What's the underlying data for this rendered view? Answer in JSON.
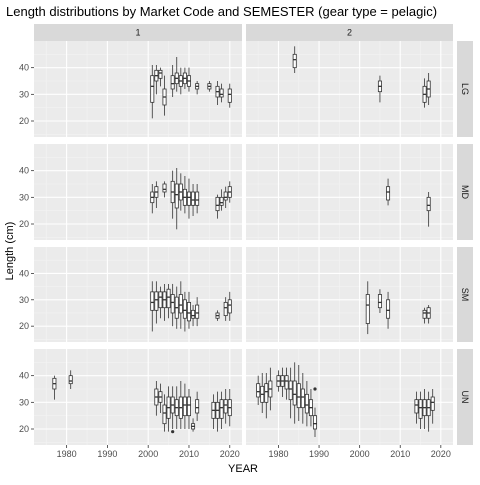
{
  "chart_data": {
    "type": "boxplot",
    "title": "Length distributions by Market Code and SEMESTER (gear type = pelagic)",
    "xlabel": "YEAR",
    "ylabel": "Length (cm)",
    "xlim": [
      1972,
      2023
    ],
    "ylim": [
      14,
      50
    ],
    "xticks": [
      1980,
      1990,
      2000,
      2010,
      2020
    ],
    "yticks": [
      20,
      30,
      40
    ],
    "column_facet_labels": [
      "1",
      "2"
    ],
    "row_facet_labels": [
      "LG",
      "MD",
      "SM",
      "UN"
    ],
    "grid": true,
    "panels": [
      {
        "col": "1",
        "row": "LG",
        "boxes": [
          {
            "year": 2001,
            "min": 21,
            "q1": 27,
            "median": 33,
            "q3": 37,
            "max": 41
          },
          {
            "year": 2002,
            "min": 30,
            "q1": 35,
            "median": 37,
            "q3": 39,
            "max": 41
          },
          {
            "year": 2003,
            "min": 33,
            "q1": 36,
            "median": 38,
            "q3": 39,
            "max": 40
          },
          {
            "year": 2004,
            "min": 22,
            "q1": 26,
            "median": 29,
            "q3": 32,
            "max": 37
          },
          {
            "year": 2006,
            "min": 29,
            "q1": 32,
            "median": 34,
            "q3": 37,
            "max": 41
          },
          {
            "year": 2007,
            "min": 31,
            "q1": 34,
            "median": 36,
            "q3": 38,
            "max": 44
          },
          {
            "year": 2008,
            "min": 30,
            "q1": 33,
            "median": 35,
            "q3": 37,
            "max": 40
          },
          {
            "year": 2009,
            "min": 32,
            "q1": 34,
            "median": 36,
            "q3": 38,
            "max": 40
          },
          {
            "year": 2010,
            "min": 31,
            "q1": 33,
            "median": 35,
            "q3": 37,
            "max": 40
          },
          {
            "year": 2012,
            "min": 30,
            "q1": 32,
            "median": 33,
            "q3": 34,
            "max": 35
          },
          {
            "year": 2015,
            "min": 31,
            "q1": 32,
            "median": 33,
            "q3": 34,
            "max": 35
          },
          {
            "year": 2017,
            "min": 26,
            "q1": 29,
            "median": 31,
            "q3": 33,
            "max": 35
          },
          {
            "year": 2018,
            "min": 27,
            "q1": 29,
            "median": 30,
            "q3": 32,
            "max": 34
          },
          {
            "year": 2020,
            "min": 25,
            "q1": 27,
            "median": 30,
            "q3": 32,
            "max": 34
          }
        ]
      },
      {
        "col": "2",
        "row": "LG",
        "boxes": [
          {
            "year": 1984,
            "min": 38,
            "q1": 40,
            "median": 43,
            "q3": 45,
            "max": 48
          },
          {
            "year": 2005,
            "min": 27,
            "q1": 31,
            "median": 33,
            "q3": 35,
            "max": 37
          },
          {
            "year": 2016,
            "min": 25,
            "q1": 27,
            "median": 30,
            "q3": 33,
            "max": 36
          },
          {
            "year": 2017,
            "min": 26,
            "q1": 29,
            "median": 32,
            "q3": 35,
            "max": 38
          }
        ]
      },
      {
        "col": "1",
        "row": "MD",
        "boxes": [
          {
            "year": 2001,
            "min": 24,
            "q1": 28,
            "median": 30,
            "q3": 32,
            "max": 35
          },
          {
            "year": 2002,
            "min": 26,
            "q1": 30,
            "median": 32,
            "q3": 34,
            "max": 36
          },
          {
            "year": 2004,
            "min": 30,
            "q1": 32,
            "median": 33,
            "q3": 35,
            "max": 36
          },
          {
            "year": 2006,
            "min": 22,
            "q1": 28,
            "median": 32,
            "q3": 36,
            "max": 40
          },
          {
            "year": 2007,
            "min": 18,
            "q1": 26,
            "median": 31,
            "q3": 35,
            "max": 41
          },
          {
            "year": 2008,
            "min": 25,
            "q1": 29,
            "median": 32,
            "q3": 35,
            "max": 39
          },
          {
            "year": 2009,
            "min": 24,
            "q1": 27,
            "median": 30,
            "q3": 33,
            "max": 38
          },
          {
            "year": 2010,
            "min": 22,
            "q1": 27,
            "median": 30,
            "q3": 32,
            "max": 37
          },
          {
            "year": 2011,
            "min": 23,
            "q1": 27,
            "median": 29,
            "q3": 32,
            "max": 35
          },
          {
            "year": 2012,
            "min": 24,
            "q1": 27,
            "median": 29,
            "q3": 32,
            "max": 35
          },
          {
            "year": 2017,
            "min": 22,
            "q1": 25,
            "median": 27,
            "q3": 30,
            "max": 31
          },
          {
            "year": 2018,
            "min": 25,
            "q1": 27,
            "median": 28,
            "q3": 30,
            "max": 33
          },
          {
            "year": 2019,
            "min": 26,
            "q1": 29,
            "median": 30,
            "q3": 32,
            "max": 34
          },
          {
            "year": 2020,
            "min": 28,
            "q1": 30,
            "median": 32,
            "q3": 34,
            "max": 36
          }
        ]
      },
      {
        "col": "2",
        "row": "MD",
        "boxes": [
          {
            "year": 2007,
            "min": 27,
            "q1": 29,
            "median": 32,
            "q3": 34,
            "max": 37
          },
          {
            "year": 2017,
            "min": 19,
            "q1": 25,
            "median": 27,
            "q3": 30,
            "max": 32
          }
        ]
      },
      {
        "col": "1",
        "row": "SM",
        "boxes": [
          {
            "year": 2001,
            "min": 18,
            "q1": 26,
            "median": 29,
            "q3": 33,
            "max": 37
          },
          {
            "year": 2002,
            "min": 21,
            "q1": 26,
            "median": 30,
            "q3": 33,
            "max": 37
          },
          {
            "year": 2003,
            "min": 23,
            "q1": 27,
            "median": 31,
            "q3": 33,
            "max": 35
          },
          {
            "year": 2004,
            "min": 22,
            "q1": 27,
            "median": 30,
            "q3": 33,
            "max": 36
          },
          {
            "year": 2005,
            "min": 23,
            "q1": 27,
            "median": 31,
            "q3": 34,
            "max": 36
          },
          {
            "year": 2006,
            "min": 20,
            "q1": 25,
            "median": 29,
            "q3": 32,
            "max": 36
          },
          {
            "year": 2007,
            "min": 19,
            "q1": 23,
            "median": 27,
            "q3": 31,
            "max": 35
          },
          {
            "year": 2008,
            "min": 19,
            "q1": 25,
            "median": 28,
            "q3": 32,
            "max": 37
          },
          {
            "year": 2009,
            "min": 18,
            "q1": 23,
            "median": 26,
            "q3": 30,
            "max": 33
          },
          {
            "year": 2010,
            "min": 19,
            "q1": 22,
            "median": 25,
            "q3": 29,
            "max": 33
          },
          {
            "year": 2011,
            "min": 20,
            "q1": 23,
            "median": 24,
            "q3": 26,
            "max": 28
          },
          {
            "year": 2012,
            "min": 20,
            "q1": 23,
            "median": 25,
            "q3": 28,
            "max": 31
          },
          {
            "year": 2017,
            "min": 22,
            "q1": 23,
            "median": 24,
            "q3": 25,
            "max": 26
          },
          {
            "year": 2019,
            "min": 22,
            "q1": 24,
            "median": 27,
            "q3": 29,
            "max": 31
          },
          {
            "year": 2020,
            "min": 22,
            "q1": 25,
            "median": 28,
            "q3": 30,
            "max": 33
          }
        ]
      },
      {
        "col": "2",
        "row": "SM",
        "boxes": [
          {
            "year": 2002,
            "min": 17,
            "q1": 21,
            "median": 28,
            "q3": 32,
            "max": 37
          },
          {
            "year": 2005,
            "min": 25,
            "q1": 27,
            "median": 29,
            "q3": 32,
            "max": 34
          },
          {
            "year": 2007,
            "min": 19,
            "q1": 23,
            "median": 26,
            "q3": 30,
            "max": 33
          },
          {
            "year": 2016,
            "min": 21,
            "q1": 23,
            "median": 25,
            "q3": 26,
            "max": 27
          },
          {
            "year": 2017,
            "min": 21,
            "q1": 23,
            "median": 25,
            "q3": 27,
            "max": 28
          }
        ]
      },
      {
        "col": "1",
        "row": "UN",
        "boxes": [
          {
            "year": 1977,
            "min": 31,
            "q1": 35,
            "median": 37,
            "q3": 39,
            "max": 40
          },
          {
            "year": 1981,
            "min": 35,
            "q1": 37,
            "median": 38,
            "q3": 40,
            "max": 42
          },
          {
            "year": 2002,
            "min": 25,
            "q1": 29,
            "median": 32,
            "q3": 35,
            "max": 38
          },
          {
            "year": 2003,
            "min": 26,
            "q1": 30,
            "median": 32,
            "q3": 34,
            "max": 37
          },
          {
            "year": 2004,
            "min": 19,
            "q1": 22,
            "median": 26,
            "q3": 29,
            "max": 33
          },
          {
            "year": 2005,
            "min": 19,
            "q1": 24,
            "median": 28,
            "q3": 32,
            "max": 36
          },
          {
            "year": 2006,
            "min": 20,
            "q1": 26,
            "median": 29,
            "q3": 32,
            "max": 36,
            "outliers": [
              19
            ]
          },
          {
            "year": 2007,
            "min": 20,
            "q1": 25,
            "median": 28,
            "q3": 31,
            "max": 36
          },
          {
            "year": 2008,
            "min": 20,
            "q1": 24,
            "median": 28,
            "q3": 32,
            "max": 38
          },
          {
            "year": 2009,
            "min": 20,
            "q1": 25,
            "median": 29,
            "q3": 32,
            "max": 37
          },
          {
            "year": 2010,
            "min": 20,
            "q1": 25,
            "median": 29,
            "q3": 32,
            "max": 35
          },
          {
            "year": 2011,
            "min": 19,
            "q1": 20,
            "median": 21,
            "q3": 22,
            "max": 24
          },
          {
            "year": 2012,
            "min": 23,
            "q1": 26,
            "median": 28,
            "q3": 31,
            "max": 34
          },
          {
            "year": 2016,
            "min": 20,
            "q1": 24,
            "median": 27,
            "q3": 30,
            "max": 33
          },
          {
            "year": 2017,
            "min": 19,
            "q1": 24,
            "median": 27,
            "q3": 30,
            "max": 34
          },
          {
            "year": 2018,
            "min": 20,
            "q1": 24,
            "median": 28,
            "q3": 31,
            "max": 34
          },
          {
            "year": 2019,
            "min": 22,
            "q1": 26,
            "median": 29,
            "q3": 31,
            "max": 35
          },
          {
            "year": 2020,
            "min": 21,
            "q1": 25,
            "median": 28,
            "q3": 31,
            "max": 35
          }
        ]
      },
      {
        "col": "2",
        "row": "UN",
        "boxes": [
          {
            "year": 1975,
            "min": 29,
            "q1": 32,
            "median": 34,
            "q3": 37,
            "max": 40
          },
          {
            "year": 1976,
            "min": 26,
            "q1": 30,
            "median": 33,
            "q3": 36,
            "max": 41
          },
          {
            "year": 1977,
            "min": 24,
            "q1": 30,
            "median": 34,
            "q3": 37,
            "max": 41
          },
          {
            "year": 1978,
            "min": 27,
            "q1": 32,
            "median": 35,
            "q3": 38,
            "max": 43
          },
          {
            "year": 1980,
            "min": 34,
            "q1": 36,
            "median": 38,
            "q3": 40,
            "max": 42
          },
          {
            "year": 1981,
            "min": 32,
            "q1": 36,
            "median": 38,
            "q3": 40,
            "max": 43
          },
          {
            "year": 1982,
            "min": 31,
            "q1": 35,
            "median": 38,
            "q3": 40,
            "max": 43
          },
          {
            "year": 1983,
            "min": 24,
            "q1": 31,
            "median": 35,
            "q3": 38,
            "max": 43
          },
          {
            "year": 1984,
            "min": 22,
            "q1": 29,
            "median": 33,
            "q3": 38,
            "max": 45
          },
          {
            "year": 1985,
            "min": 23,
            "q1": 28,
            "median": 32,
            "q3": 37,
            "max": 44
          },
          {
            "year": 1986,
            "min": 22,
            "q1": 28,
            "median": 32,
            "q3": 35,
            "max": 41
          },
          {
            "year": 1987,
            "min": 21,
            "q1": 26,
            "median": 29,
            "q3": 33,
            "max": 38
          },
          {
            "year": 1988,
            "min": 21,
            "q1": 25,
            "median": 28,
            "q3": 31,
            "max": 35
          },
          {
            "year": 1989,
            "min": 17,
            "q1": 20,
            "median": 22,
            "q3": 25,
            "max": 28,
            "outliers": [
              35
            ]
          },
          {
            "year": 2014,
            "min": 22,
            "q1": 26,
            "median": 29,
            "q3": 31,
            "max": 34
          },
          {
            "year": 2015,
            "min": 20,
            "q1": 24,
            "median": 28,
            "q3": 31,
            "max": 34
          },
          {
            "year": 2016,
            "min": 20,
            "q1": 25,
            "median": 28,
            "q3": 31,
            "max": 35
          },
          {
            "year": 2017,
            "min": 19,
            "q1": 25,
            "median": 28,
            "q3": 31,
            "max": 34
          },
          {
            "year": 2018,
            "min": 22,
            "q1": 27,
            "median": 30,
            "q3": 32,
            "max": 35
          }
        ]
      }
    ]
  },
  "colors": {
    "panel_background": "#ebebeb",
    "grid_major": "#ffffff",
    "grid_minor": "#f3f3f3",
    "strip_background": "#d9d9d9",
    "box_fill": "#ffffff",
    "box_stroke": "#333333",
    "tick_text": "#4d4d4d"
  }
}
